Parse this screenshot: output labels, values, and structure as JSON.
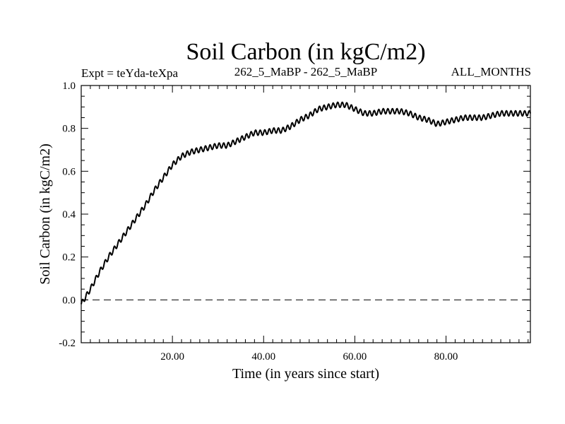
{
  "chart_data": {
    "type": "line",
    "title": "Soil Carbon (in kgC/m2)",
    "subtitle_left": "Expt = teYda-teXpa",
    "subtitle_center": "262_5_MaBP - 262_5_MaBP",
    "subtitle_right": "ALL_MONTHS",
    "xlabel": "Time (in years since start)",
    "ylabel": "Soil Carbon (in kgC/m2)",
    "xlim": [
      0,
      98.5
    ],
    "ylim": [
      -0.2,
      1.0
    ],
    "x_ticks": [
      20,
      40,
      60,
      80
    ],
    "x_tick_labels": [
      "20.00",
      "40.00",
      "60.00",
      "80.00"
    ],
    "y_ticks": [
      -0.2,
      0.0,
      0.2,
      0.4,
      0.6,
      0.8,
      1.0
    ],
    "y_tick_labels": [
      "-0.2",
      "0.0",
      "0.2",
      "0.4",
      "0.6",
      "0.8",
      "1.0"
    ],
    "reference_line": {
      "y": 0.0,
      "style": "dashed"
    },
    "series": [
      {
        "name": "Soil Carbon",
        "seasonal_amplitude": 0.012,
        "x": [
          0,
          2,
          4,
          6,
          8,
          10,
          12,
          14,
          16,
          18,
          20,
          22,
          24,
          26,
          28,
          30,
          32,
          34,
          36,
          38,
          40,
          42,
          44,
          46,
          48,
          50,
          52,
          54,
          56,
          58,
          60,
          62,
          64,
          66,
          68,
          70,
          72,
          74,
          76,
          78,
          80,
          82,
          84,
          86,
          88,
          90,
          92,
          94,
          96,
          98
        ],
        "values": [
          -0.02,
          0.05,
          0.13,
          0.2,
          0.26,
          0.32,
          0.38,
          0.44,
          0.51,
          0.57,
          0.63,
          0.67,
          0.69,
          0.7,
          0.71,
          0.72,
          0.72,
          0.74,
          0.76,
          0.78,
          0.78,
          0.79,
          0.79,
          0.81,
          0.84,
          0.86,
          0.89,
          0.9,
          0.91,
          0.91,
          0.89,
          0.87,
          0.87,
          0.88,
          0.88,
          0.88,
          0.87,
          0.85,
          0.84,
          0.82,
          0.83,
          0.84,
          0.85,
          0.85,
          0.85,
          0.86,
          0.87,
          0.87,
          0.87,
          0.87
        ]
      }
    ]
  }
}
